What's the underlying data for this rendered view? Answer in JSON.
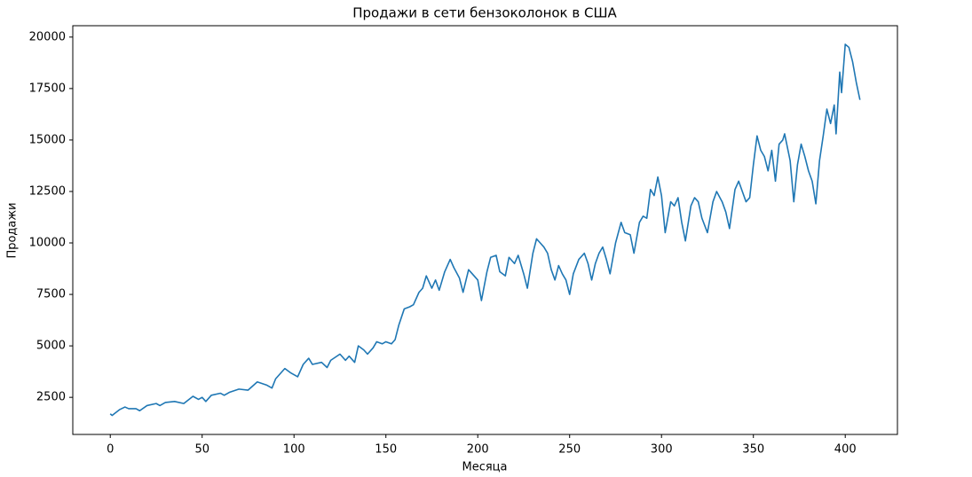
{
  "chart_data": {
    "type": "line",
    "title": "Продажи в сети бензоколонок в США",
    "x_label": "Месяца",
    "y_label": "Продажи",
    "x": [
      0,
      1,
      5,
      8,
      10,
      14,
      16,
      20,
      25,
      27,
      30,
      35,
      40,
      45,
      48,
      50,
      52,
      55,
      60,
      62,
      65,
      70,
      75,
      80,
      85,
      88,
      90,
      95,
      98,
      102,
      105,
      108,
      110,
      115,
      118,
      120,
      125,
      128,
      130,
      133,
      135,
      138,
      140,
      143,
      145,
      148,
      150,
      153,
      155,
      157,
      160,
      163,
      165,
      168,
      170,
      172,
      175,
      177,
      179,
      182,
      185,
      187,
      190,
      192,
      195,
      197,
      200,
      202,
      205,
      207,
      210,
      212,
      215,
      217,
      220,
      222,
      225,
      227,
      230,
      232,
      234,
      236,
      238,
      240,
      242,
      244,
      246,
      248,
      250,
      252,
      255,
      258,
      260,
      262,
      264,
      266,
      268,
      270,
      272,
      275,
      278,
      280,
      283,
      285,
      288,
      290,
      292,
      294,
      296,
      298,
      300,
      302,
      305,
      307,
      309,
      311,
      313,
      316,
      318,
      320,
      322,
      325,
      328,
      330,
      333,
      335,
      337,
      340,
      342,
      344,
      346,
      348,
      350,
      352,
      354,
      356,
      358,
      360,
      362,
      364,
      366,
      367,
      370,
      372,
      374,
      376,
      378,
      380,
      382,
      384,
      386,
      388,
      390,
      392,
      394,
      395,
      397,
      398,
      400,
      402,
      404,
      406,
      408
    ],
    "series": [
      {
        "name": "Продажи",
        "color": "#1f77b4",
        "values": [
          1700,
          1620,
          1900,
          2030,
          1950,
          1950,
          1850,
          2100,
          2200,
          2100,
          2250,
          2300,
          2200,
          2550,
          2400,
          2500,
          2300,
          2600,
          2700,
          2600,
          2750,
          2900,
          2850,
          3250,
          3100,
          2950,
          3400,
          3900,
          3700,
          3500,
          4100,
          4400,
          4100,
          4200,
          3950,
          4300,
          4600,
          4300,
          4500,
          4200,
          5000,
          4800,
          4600,
          4900,
          5200,
          5100,
          5200,
          5100,
          5300,
          6000,
          6800,
          6900,
          7000,
          7600,
          7800,
          8400,
          7800,
          8200,
          7700,
          8600,
          9200,
          8800,
          8300,
          7600,
          8700,
          8500,
          8200,
          7200,
          8600,
          9300,
          9400,
          8600,
          8400,
          9300,
          9000,
          9400,
          8500,
          7800,
          9500,
          10200,
          10000,
          9800,
          9500,
          8700,
          8200,
          8900,
          8500,
          8200,
          7500,
          8500,
          9200,
          9500,
          9000,
          8200,
          9000,
          9500,
          9800,
          9200,
          8500,
          10000,
          11000,
          10500,
          10400,
          9500,
          11000,
          11300,
          11200,
          12600,
          12300,
          13200,
          12300,
          10500,
          12000,
          11800,
          12200,
          11000,
          10100,
          11800,
          12200,
          12000,
          11200,
          10500,
          12000,
          12500,
          12000,
          11500,
          10700,
          12600,
          13000,
          12500,
          12000,
          12200,
          13800,
          15200,
          14500,
          14200,
          13500,
          14500,
          13000,
          14800,
          15000,
          15300,
          14000,
          12000,
          13800,
          14800,
          14200,
          13500,
          13000,
          11900,
          14000,
          15200,
          16500,
          15800,
          16700,
          15300,
          18300,
          17300,
          19650,
          19500,
          18800,
          17800,
          16950
        ]
      }
    ],
    "xlim": [
      -20.4,
      428.4
    ],
    "ylim": [
      698,
      20552
    ],
    "xticks": [
      0,
      50,
      100,
      150,
      200,
      250,
      300,
      350,
      400
    ],
    "yticks": [
      2500,
      5000,
      7500,
      10000,
      12500,
      15000,
      17500,
      20000
    ]
  }
}
